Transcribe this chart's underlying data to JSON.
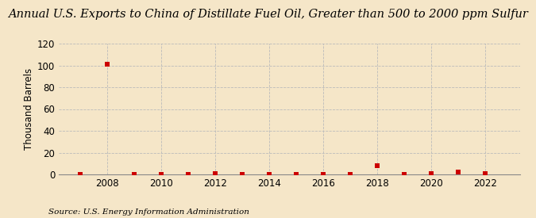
{
  "title": "Annual U.S. Exports to China of Distillate Fuel Oil, Greater than 500 to 2000 ppm Sulfur",
  "ylabel": "Thousand Barrels",
  "source": "Source: U.S. Energy Information Administration",
  "background_color": "#f5e6c8",
  "years": [
    2007,
    2008,
    2009,
    2010,
    2011,
    2012,
    2013,
    2014,
    2015,
    2016,
    2017,
    2018,
    2019,
    2020,
    2021,
    2022
  ],
  "values": [
    0,
    101,
    0,
    0,
    0,
    1,
    0,
    0,
    0,
    0,
    0,
    8,
    0,
    1,
    2,
    1
  ],
  "marker_color": "#cc0000",
  "marker_size": 16,
  "ylim": [
    0,
    120
  ],
  "yticks": [
    0,
    20,
    40,
    60,
    80,
    100,
    120
  ],
  "xtick_years": [
    2008,
    2010,
    2012,
    2014,
    2016,
    2018,
    2020,
    2022
  ],
  "xlim": [
    2006.2,
    2023.3
  ],
  "grid_color": "#bbbbbb",
  "title_fontsize": 10.5,
  "axis_fontsize": 8.5,
  "source_fontsize": 7.5
}
